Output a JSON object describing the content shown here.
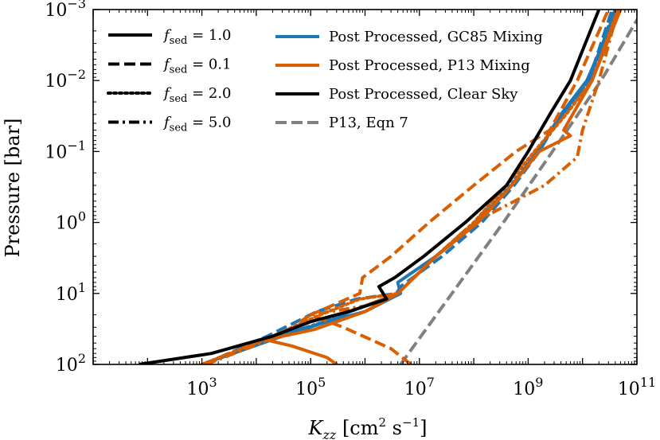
{
  "chart_data": {
    "type": "line",
    "x_scale": "log",
    "y_scale": "log",
    "y_inverted": true,
    "xlim": [
      10,
      100000000000
    ],
    "ylim": [
      100,
      0.001
    ],
    "xlabel_main": "K",
    "xlabel_sub": "zz",
    "xlabel_units_pre": "[cm",
    "xlabel_units_sup1": "2",
    "xlabel_units_mid": " s",
    "xlabel_units_sup2": "−1",
    "xlabel_units_post": "]",
    "ylabel": "Pressure [bar]",
    "x_ticks": [
      {
        "value": 1000,
        "base": "10",
        "exp": "3"
      },
      {
        "value": 100000,
        "base": "10",
        "exp": "5"
      },
      {
        "value": 10000000,
        "base": "10",
        "exp": "7"
      },
      {
        "value": 1000000000,
        "base": "10",
        "exp": "9"
      },
      {
        "value": 100000000000,
        "base": "10",
        "exp": "11"
      }
    ],
    "y_ticks": [
      {
        "value": 0.001,
        "base": "10",
        "exp": "−3"
      },
      {
        "value": 0.01,
        "base": "10",
        "exp": "−2"
      },
      {
        "value": 0.1,
        "base": "10",
        "exp": "−1"
      },
      {
        "value": 1,
        "base": "10",
        "exp": "0"
      },
      {
        "value": 10,
        "base": "10",
        "exp": "1"
      },
      {
        "value": 100,
        "base": "10",
        "exp": "2"
      }
    ],
    "legend_left": [
      {
        "label_main": "f",
        "label_sub": "sed",
        "label_value": " = 1.0",
        "dash": "solid"
      },
      {
        "label_main": "f",
        "label_sub": "sed",
        "label_value": " = 0.1",
        "dash": "dashed"
      },
      {
        "label_main": "f",
        "label_sub": "sed",
        "label_value": " = 2.0",
        "dash": "dotted"
      },
      {
        "label_main": "f",
        "label_sub": "sed",
        "label_value": " = 5.0",
        "dash": "dashdot"
      }
    ],
    "legend_right": [
      {
        "label": "Post Processed, GC85 Mixing",
        "color": "#1f77b4",
        "dash": "solid"
      },
      {
        "label": "Post Processed, P13 Mixing",
        "color": "#d95f02",
        "dash": "solid"
      },
      {
        "label": "Post Processed, Clear Sky",
        "color": "#000000",
        "dash": "solid"
      },
      {
        "label": "P13, Eqn 7",
        "color": "#808080",
        "dash": "dashed"
      }
    ],
    "series": [
      {
        "name": "P13, Eqn 7",
        "color": "#808080",
        "dash": "dashed",
        "points": [
          [
            4500000.0,
            100
          ],
          [
            350000000.0,
            1
          ],
          [
            2800000000.0,
            0.1
          ],
          [
            22000000000.0,
            0.01
          ],
          [
            130000000000.0,
            0.001
          ]
        ]
      },
      {
        "name": "GC85 fsed=1.0",
        "color": "#1f77b4",
        "dash": "solid",
        "points": [
          [
            1000.0,
            100
          ],
          [
            30000.0,
            40
          ],
          [
            200000.0,
            25
          ],
          [
            1000000.0,
            18
          ],
          [
            4500000.0,
            10
          ],
          [
            4000000.0,
            7
          ],
          [
            20000000.0,
            3
          ],
          [
            120000000.0,
            1
          ],
          [
            500000000.0,
            0.3
          ],
          [
            1500000000.0,
            0.1
          ],
          [
            4000000000.0,
            0.03
          ],
          [
            12000000000.0,
            0.01
          ],
          [
            45000000000.0,
            0.001
          ]
        ]
      },
      {
        "name": "GC85 fsed=0.1",
        "color": "#1f77b4",
        "dash": "dashed",
        "points": [
          [
            1100.0,
            100
          ],
          [
            16000.0,
            40
          ],
          [
            130000.0,
            18
          ],
          [
            700000.0,
            12
          ],
          [
            3800000.0,
            10
          ],
          [
            4500000.0,
            8
          ],
          [
            26000000.0,
            3
          ],
          [
            140000000.0,
            1
          ],
          [
            550000000.0,
            0.3
          ],
          [
            1600000000.0,
            0.1
          ],
          [
            4000000000.0,
            0.03
          ],
          [
            13000000000.0,
            0.01
          ],
          [
            35000000000.0,
            0.001
          ]
        ]
      },
      {
        "name": "GC85 fsed=2.0",
        "color": "#1f77b4",
        "dash": "dotted",
        "points": [
          [
            1000.0,
            100
          ],
          [
            25000.0,
            40
          ],
          [
            180000.0,
            25
          ],
          [
            1000000.0,
            15
          ],
          [
            4000000.0,
            10
          ],
          [
            20000000.0,
            3
          ],
          [
            110000000.0,
            1
          ],
          [
            480000000.0,
            0.3
          ],
          [
            1500000000.0,
            0.1
          ],
          [
            4300000000.0,
            0.03
          ],
          [
            13000000000.0,
            0.01
          ],
          [
            40000000000.0,
            0.001
          ]
        ]
      },
      {
        "name": "GC85 fsed=5.0",
        "color": "#1f77b4",
        "dash": "dashdot",
        "points": [
          [
            1000.0,
            100
          ],
          [
            25000.0,
            40
          ],
          [
            180000.0,
            25
          ],
          [
            1000000.0,
            15
          ],
          [
            4000000.0,
            10
          ],
          [
            20000000.0,
            3
          ],
          [
            120000000.0,
            1
          ],
          [
            500000000.0,
            0.3
          ],
          [
            1500000000.0,
            0.1
          ],
          [
            4500000000.0,
            0.03
          ],
          [
            14000000000.0,
            0.01
          ],
          [
            38000000000.0,
            0.001
          ]
        ]
      },
      {
        "name": "P13 fsed=1.0",
        "color": "#d95f02",
        "dash": "solid",
        "points": [
          [
            300000.0,
            100
          ],
          [
            200000.0,
            80
          ],
          [
            45000.0,
            55
          ],
          [
            15000.0,
            45
          ],
          [
            120000.0,
            32
          ],
          [
            1000000.0,
            18
          ],
          [
            4000000.0,
            10
          ],
          [
            20000000.0,
            3
          ],
          [
            120000000.0,
            1
          ],
          [
            500000000.0,
            0.3
          ],
          [
            1600000000.0,
            0.1
          ],
          [
            6000000000.0,
            0.06
          ],
          [
            4500000000.0,
            0.05
          ],
          [
            15000000000.0,
            0.01
          ],
          [
            50000000000.0,
            0.001
          ]
        ]
      },
      {
        "name": "P13 fsed=0.1",
        "color": "#d95f02",
        "dash": "dashed",
        "points": [
          [
            7000000.0,
            100
          ],
          [
            3000000.0,
            60
          ],
          [
            400000.0,
            30
          ],
          [
            100000.0,
            20
          ],
          [
            800000.0,
            10
          ],
          [
            900000.0,
            6
          ],
          [
            3000000.0,
            3
          ],
          [
            15000000.0,
            1
          ],
          [
            100000000.0,
            0.3
          ],
          [
            600000000.0,
            0.1
          ],
          [
            2500000000.0,
            0.05
          ],
          [
            8000000000.0,
            0.01
          ],
          [
            30000000000.0,
            0.001
          ]
        ]
      },
      {
        "name": "P13 fsed=2.0",
        "color": "#d95f02",
        "dash": "dotted",
        "points": [
          [
            1000.0,
            100
          ],
          [
            20000.0,
            40
          ],
          [
            150000.0,
            20
          ],
          [
            800000.0,
            12
          ],
          [
            4000000.0,
            10
          ],
          [
            20000000.0,
            3
          ],
          [
            100000000.0,
            1
          ],
          [
            400000000.0,
            0.3
          ],
          [
            1300000000.0,
            0.1
          ],
          [
            5000000000.0,
            0.03
          ],
          [
            15000000000.0,
            0.01
          ],
          [
            45000000000.0,
            0.001
          ]
        ]
      },
      {
        "name": "P13 fsed=5.0",
        "color": "#d95f02",
        "dash": "dashdot",
        "points": [
          [
            1200.0,
            100
          ],
          [
            25000.0,
            40
          ],
          [
            100000.0,
            20
          ],
          [
            1000000.0,
            15
          ],
          [
            4000000.0,
            10
          ],
          [
            20000000.0,
            3
          ],
          [
            100000000.0,
            1
          ],
          [
            2000000000.0,
            0.3
          ],
          [
            8000000000.0,
            0.12
          ],
          [
            10000000000.0,
            0.05
          ],
          [
            20000000000.0,
            0.01
          ],
          [
            45000000000.0,
            0.001
          ]
        ]
      },
      {
        "name": "Clear Sky",
        "color": "#000000",
        "dash": "solid",
        "points": [
          [
            70.0,
            100
          ],
          [
            1500.0,
            70
          ],
          [
            20000.0,
            40
          ],
          [
            100000.0,
            25
          ],
          [
            500000.0,
            18
          ],
          [
            2500000.0,
            12
          ],
          [
            1800000.0,
            8
          ],
          [
            3500000.0,
            6
          ],
          [
            12000000.0,
            3
          ],
          [
            70000000.0,
            1
          ],
          [
            400000000.0,
            0.3
          ],
          [
            1000000000.0,
            0.1
          ],
          [
            2500000000.0,
            0.03
          ],
          [
            6000000000.0,
            0.01
          ],
          [
            20000000000.0,
            0.001
          ]
        ]
      }
    ]
  }
}
